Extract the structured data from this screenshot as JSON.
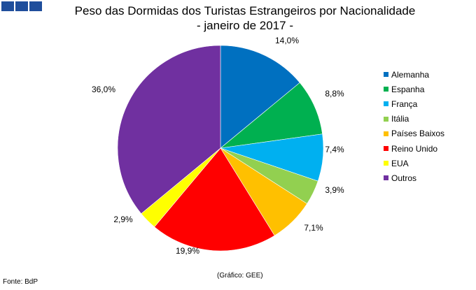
{
  "logo_colors": [
    "#1f4e9c",
    "#1f4e9c",
    "#1f4e9c"
  ],
  "header": {
    "title_line1": "Peso das Dormidas dos Turistas Estrangeiros por Nacionalidade",
    "title_line2": "- janeiro de 2017 -"
  },
  "footer": {
    "source": "Fonte: BdP",
    "credit": "(Gráfico: GEE)"
  },
  "chart_data": {
    "type": "pie",
    "title": "Peso das Dormidas dos Turistas Estrangeiros por Nacionalidade - janeiro de 2017 -",
    "legend_position": "right",
    "slices": [
      {
        "name": "Alemanha",
        "value": 14.0,
        "label": "14,0%",
        "color": "#0070c0"
      },
      {
        "name": "Espanha",
        "value": 8.8,
        "label": "8,8%",
        "color": "#00b050"
      },
      {
        "name": "França",
        "value": 7.4,
        "label": "7,4%",
        "color": "#00b0f0"
      },
      {
        "name": "Itália",
        "value": 3.9,
        "label": "3,9%",
        "color": "#92d050"
      },
      {
        "name": "Países Baixos",
        "value": 7.1,
        "label": "7,1%",
        "color": "#ffc000"
      },
      {
        "name": "Reino Unido",
        "value": 19.9,
        "label": "19,9%",
        "color": "#ff0000"
      },
      {
        "name": "EUA",
        "value": 2.9,
        "label": "2,9%",
        "color": "#ffff00"
      },
      {
        "name": "Outros",
        "value": 36.0,
        "label": "36,0%",
        "color": "#7030a0"
      }
    ]
  }
}
